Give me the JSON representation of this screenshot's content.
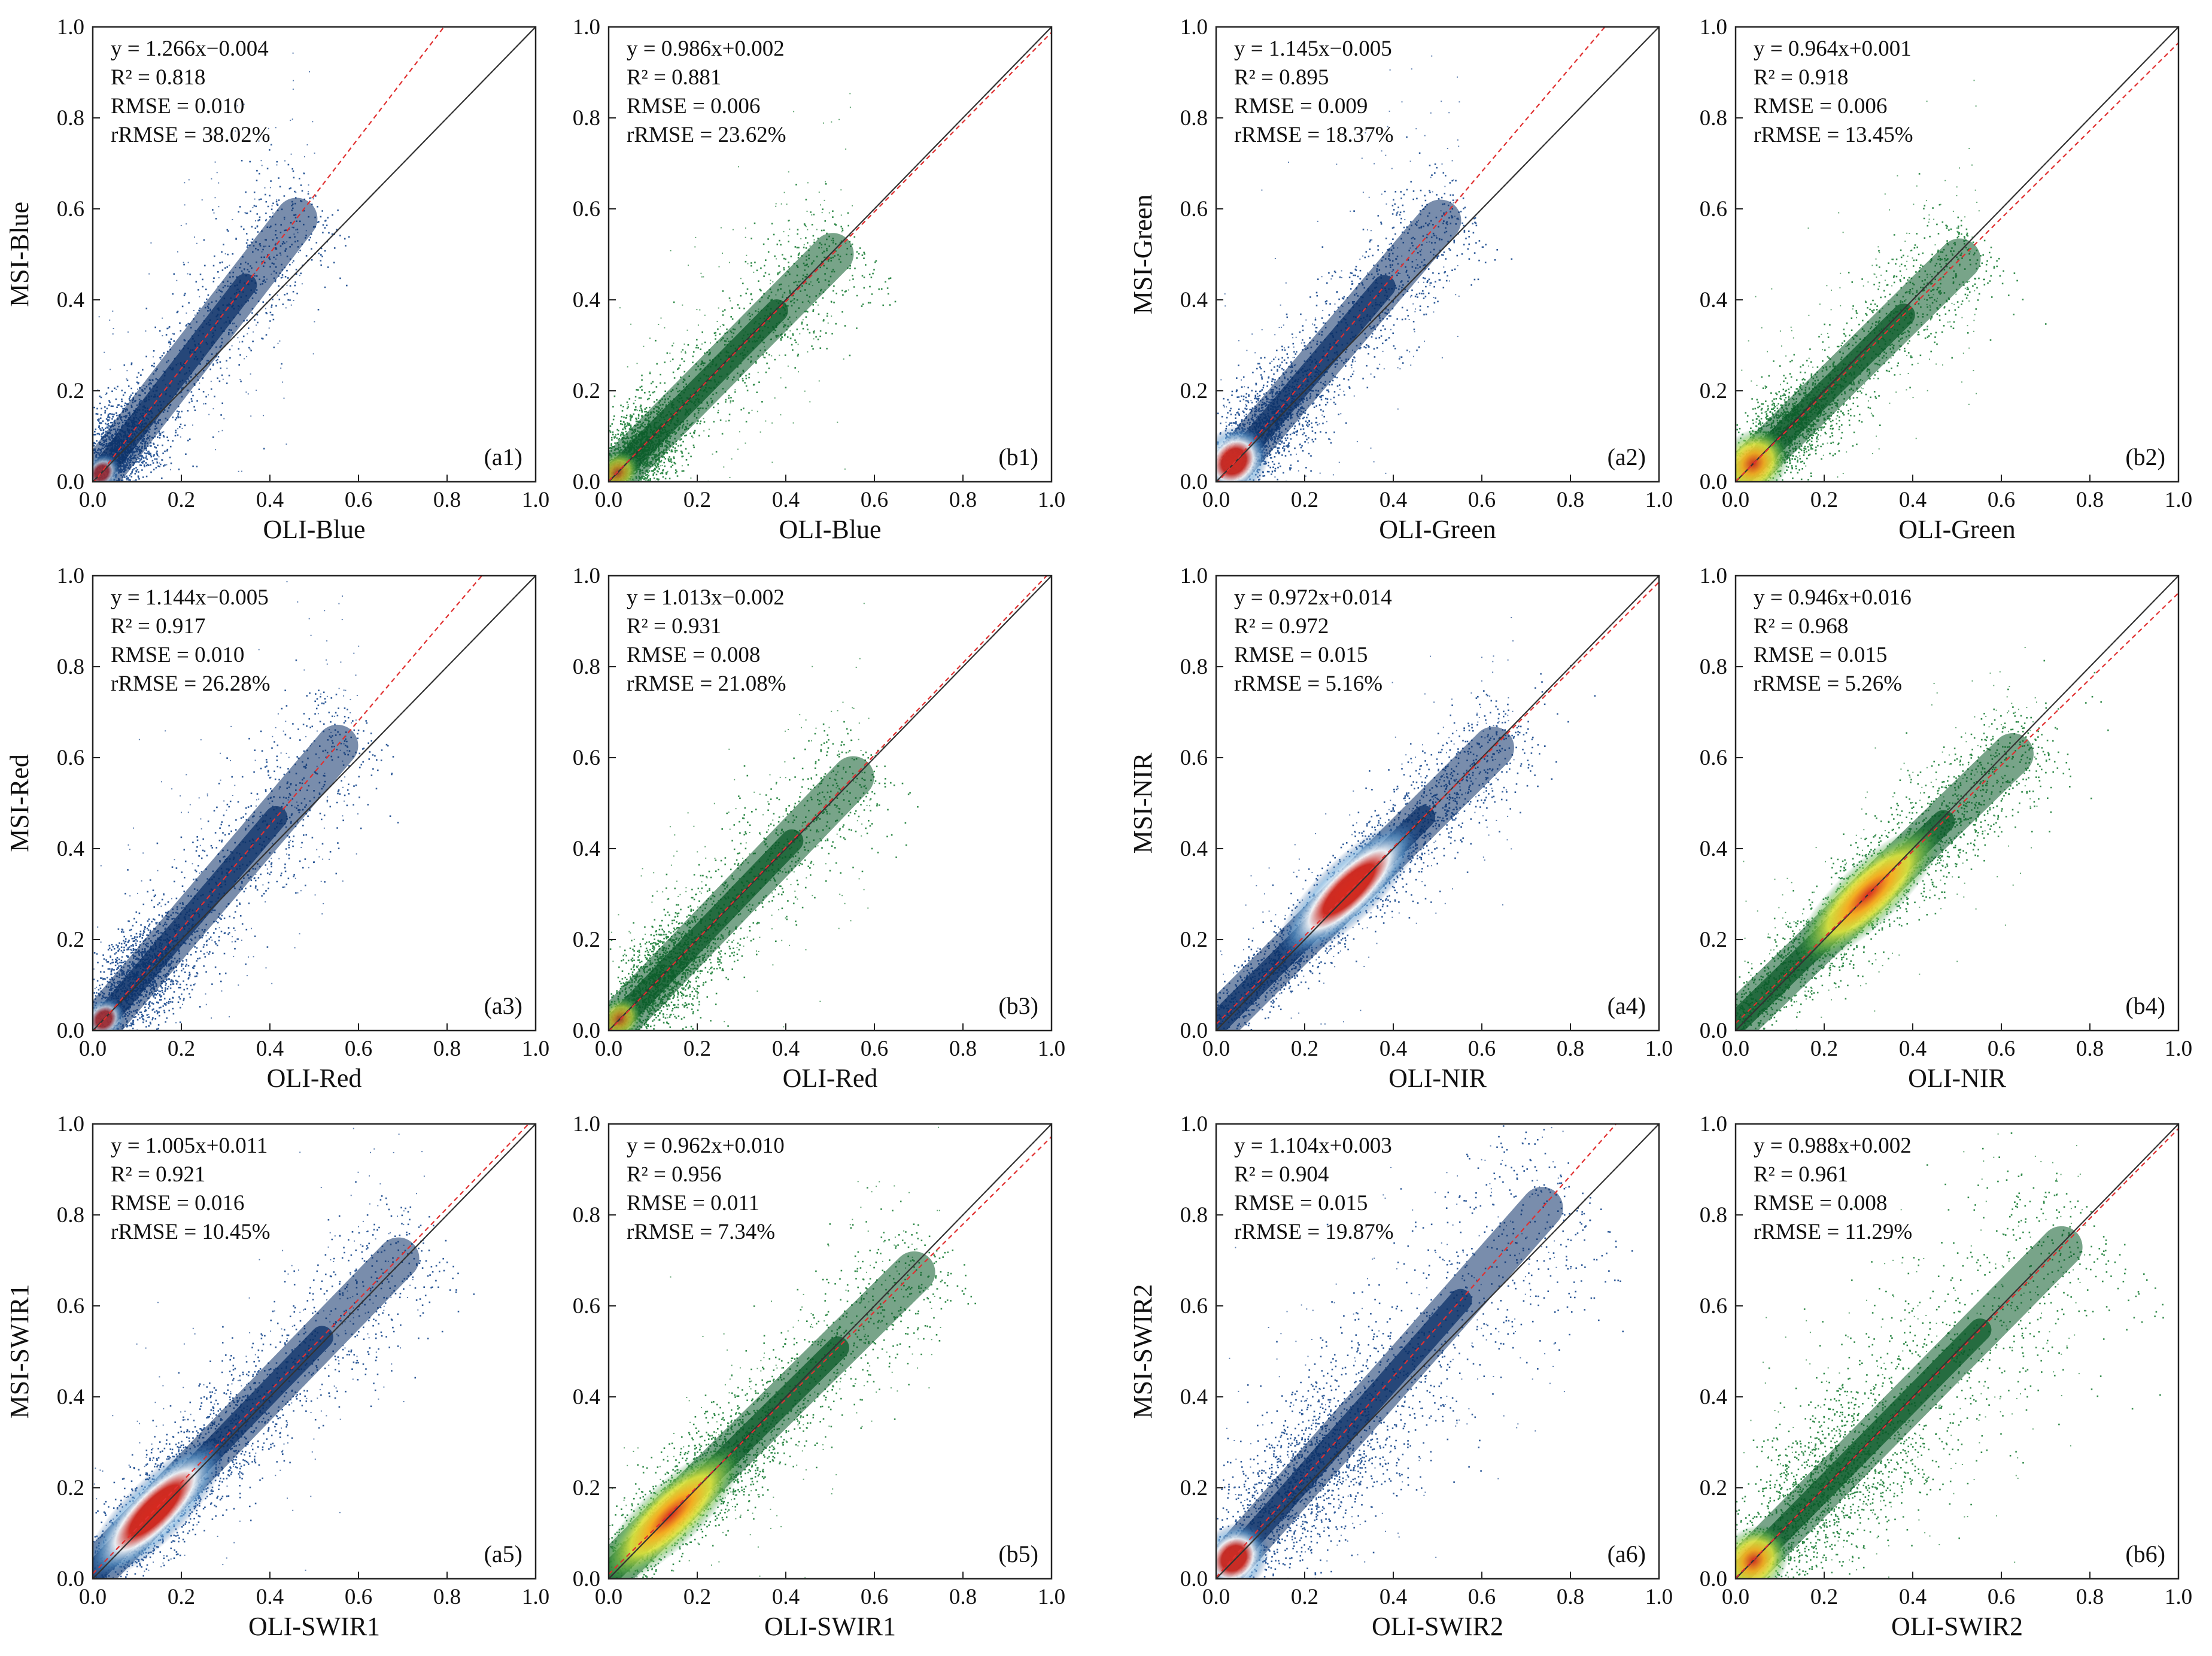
{
  "figure": {
    "background": "#ffffff"
  },
  "chart_data": [
    {
      "type": "scatter",
      "panel": "(a1)",
      "style": "blue-density",
      "xlabel": "OLI-Blue",
      "ylabel": "MSI-Blue",
      "xlim": [
        0,
        1.0
      ],
      "ylim": [
        0,
        1.0
      ],
      "xticks": [
        "0.0",
        "0.2",
        "0.4",
        "0.6",
        "0.8",
        "1.0"
      ],
      "yticks": [
        "0.0",
        "0.2",
        "0.4",
        "0.6",
        "0.8",
        "1.0"
      ],
      "fit": {
        "slope": 1.266,
        "intercept": -0.004
      },
      "stats": [
        "y = 1.266x−0.004",
        "R² = 0.818",
        "RMSE = 0.010",
        "rRMSE = 38.02%"
      ],
      "cloud": {
        "center": [
          0.06,
          0.06
        ],
        "max": [
          0.5,
          0.65
        ],
        "spread": 0.06,
        "hotspot": [
          0.02,
          0.02
        ],
        "hot_strength": 0.3
      }
    },
    {
      "type": "scatter",
      "panel": "(b1)",
      "style": "green-density",
      "xlabel": "OLI-Blue",
      "ylabel": "",
      "xlim": [
        0,
        1.0
      ],
      "ylim": [
        0,
        1.0
      ],
      "xticks": [
        "0.0",
        "0.2",
        "0.4",
        "0.6",
        "0.8",
        "1.0"
      ],
      "yticks": [
        "0.0",
        "0.2",
        "0.4",
        "0.6",
        "0.8",
        "1.0"
      ],
      "fit": {
        "slope": 0.986,
        "intercept": 0.002
      },
      "stats": [
        "y = 0.986x+0.002",
        "R² = 0.881",
        "RMSE = 0.006",
        "rRMSE = 23.62%"
      ],
      "cloud": {
        "center": [
          0.07,
          0.07
        ],
        "max": [
          0.55,
          0.5
        ],
        "spread": 0.055,
        "hotspot": [
          0.02,
          0.02
        ],
        "hot_strength": 0.4
      }
    },
    {
      "type": "scatter",
      "panel": "(a2)",
      "style": "blue-density",
      "xlabel": "OLI-Green",
      "ylabel": "MSI-Green",
      "xlim": [
        0,
        1.0
      ],
      "ylim": [
        0,
        1.0
      ],
      "xticks": [
        "0.0",
        "0.2",
        "0.4",
        "0.6",
        "0.8",
        "1.0"
      ],
      "yticks": [
        "0.0",
        "0.2",
        "0.4",
        "0.6",
        "0.8",
        "1.0"
      ],
      "fit": {
        "slope": 1.145,
        "intercept": -0.005
      },
      "stats": [
        "y = 1.145x−0.005",
        "R² = 0.895",
        "RMSE = 0.009",
        "rRMSE = 18.37%"
      ],
      "cloud": {
        "center": [
          0.1,
          0.11
        ],
        "max": [
          0.55,
          0.65
        ],
        "spread": 0.055,
        "hotspot": [
          0.04,
          0.045
        ],
        "hot_strength": 0.9
      }
    },
    {
      "type": "scatter",
      "panel": "(b2)",
      "style": "green-density",
      "xlabel": "OLI-Green",
      "ylabel": "",
      "xlim": [
        0,
        1.0
      ],
      "ylim": [
        0,
        1.0
      ],
      "xticks": [
        "0.0",
        "0.2",
        "0.4",
        "0.6",
        "0.8",
        "1.0"
      ],
      "yticks": [
        "0.0",
        "0.2",
        "0.4",
        "0.6",
        "0.8",
        "1.0"
      ],
      "fit": {
        "slope": 0.964,
        "intercept": 0.001
      },
      "stats": [
        "y = 0.964x+0.001",
        "R² = 0.918",
        "RMSE = 0.006",
        "rRMSE = 13.45%"
      ],
      "cloud": {
        "center": [
          0.11,
          0.11
        ],
        "max": [
          0.55,
          0.55
        ],
        "spread": 0.05,
        "hotspot": [
          0.04,
          0.04
        ],
        "hot_strength": 0.9
      }
    },
    {
      "type": "scatter",
      "panel": "(a3)",
      "style": "blue-density",
      "xlabel": "OLI-Red",
      "ylabel": "MSI-Red",
      "xlim": [
        0,
        1.0
      ],
      "ylim": [
        0,
        1.0
      ],
      "xticks": [
        "0.0",
        "0.2",
        "0.4",
        "0.6",
        "0.8",
        "1.0"
      ],
      "yticks": [
        "0.0",
        "0.2",
        "0.4",
        "0.6",
        "0.8",
        "1.0"
      ],
      "fit": {
        "slope": 1.144,
        "intercept": -0.005
      },
      "stats": [
        "y = 1.144x−0.005",
        "R² = 0.917",
        "RMSE = 0.010",
        "rRMSE = 26.28%"
      ],
      "cloud": {
        "center": [
          0.1,
          0.1
        ],
        "max": [
          0.6,
          0.65
        ],
        "spread": 0.06,
        "hotspot": [
          0.025,
          0.025
        ],
        "hot_strength": 0.4
      }
    },
    {
      "type": "scatter",
      "panel": "(b3)",
      "style": "green-density",
      "xlabel": "OLI-Red",
      "ylabel": "",
      "xlim": [
        0,
        1.0
      ],
      "ylim": [
        0,
        1.0
      ],
      "xticks": [
        "0.0",
        "0.2",
        "0.4",
        "0.6",
        "0.8",
        "1.0"
      ],
      "yticks": [
        "0.0",
        "0.2",
        "0.4",
        "0.6",
        "0.8",
        "1.0"
      ],
      "fit": {
        "slope": 1.013,
        "intercept": -0.002
      },
      "stats": [
        "y = 1.013x−0.002",
        "R² = 0.931",
        "RMSE = 0.008",
        "rRMSE = 21.08%"
      ],
      "cloud": {
        "center": [
          0.11,
          0.11
        ],
        "max": [
          0.6,
          0.62
        ],
        "spread": 0.055,
        "hotspot": [
          0.025,
          0.025
        ],
        "hot_strength": 0.4
      }
    },
    {
      "type": "scatter",
      "panel": "(a4)",
      "style": "blue-density",
      "xlabel": "OLI-NIR",
      "ylabel": "MSI-NIR",
      "xlim": [
        0,
        1.0
      ],
      "ylim": [
        0,
        1.0
      ],
      "xticks": [
        "0.0",
        "0.2",
        "0.4",
        "0.6",
        "0.8",
        "1.0"
      ],
      "yticks": [
        "0.0",
        "0.2",
        "0.4",
        "0.6",
        "0.8",
        "1.0"
      ],
      "fit": {
        "slope": 0.972,
        "intercept": 0.014
      },
      "stats": [
        "y = 0.972x+0.014",
        "R² = 0.972",
        "RMSE = 0.015",
        "rRMSE = 5.16%"
      ],
      "cloud": {
        "center": [
          0.3,
          0.31
        ],
        "max": [
          0.68,
          0.7
        ],
        "spread": 0.04,
        "hotspot": [
          0.3,
          0.31
        ],
        "hot_strength": 1.0
      }
    },
    {
      "type": "scatter",
      "panel": "(b4)",
      "style": "green-density",
      "xlabel": "OLI-NIR",
      "ylabel": "",
      "xlim": [
        0,
        1.0
      ],
      "ylim": [
        0,
        1.0
      ],
      "xticks": [
        "0.0",
        "0.2",
        "0.4",
        "0.6",
        "0.8",
        "1.0"
      ],
      "yticks": [
        "0.0",
        "0.2",
        "0.4",
        "0.6",
        "0.8",
        "1.0"
      ],
      "fit": {
        "slope": 0.946,
        "intercept": 0.016
      },
      "stats": [
        "y = 0.946x+0.016",
        "R² = 0.968",
        "RMSE = 0.015",
        "rRMSE = 5.26%"
      ],
      "cloud": {
        "center": [
          0.3,
          0.3
        ],
        "max": [
          0.68,
          0.67
        ],
        "spread": 0.045,
        "hotspot": [
          0.3,
          0.3
        ],
        "hot_strength": 1.0
      }
    },
    {
      "type": "scatter",
      "panel": "(a5)",
      "style": "blue-density",
      "xlabel": "OLI-SWIR1",
      "ylabel": "MSI-SWIR1",
      "xlim": [
        0,
        1.0
      ],
      "ylim": [
        0,
        1.0
      ],
      "xticks": [
        "0.0",
        "0.2",
        "0.4",
        "0.6",
        "0.8",
        "1.0"
      ],
      "yticks": [
        "0.0",
        "0.2",
        "0.4",
        "0.6",
        "0.8",
        "1.0"
      ],
      "fit": {
        "slope": 1.005,
        "intercept": 0.011
      },
      "stats": [
        "y = 1.005x+0.011",
        "R² = 0.921",
        "RMSE = 0.016",
        "rRMSE = 10.45%"
      ],
      "cloud": {
        "center": [
          0.2,
          0.21
        ],
        "max": [
          0.75,
          0.78
        ],
        "spread": 0.055,
        "hotspot": [
          0.14,
          0.15
        ],
        "hot_strength": 1.0
      }
    },
    {
      "type": "scatter",
      "panel": "(b5)",
      "style": "green-density",
      "xlabel": "OLI-SWIR1",
      "ylabel": "",
      "xlim": [
        0,
        1.0
      ],
      "ylim": [
        0,
        1.0
      ],
      "xticks": [
        "0.0",
        "0.2",
        "0.4",
        "0.6",
        "0.8",
        "1.0"
      ],
      "yticks": [
        "0.0",
        "0.2",
        "0.4",
        "0.6",
        "0.8",
        "1.0"
      ],
      "fit": {
        "slope": 0.962,
        "intercept": 0.01
      },
      "stats": [
        "y = 0.962x+0.010",
        "R² = 0.956",
        "RMSE = 0.011",
        "rRMSE = 7.34%"
      ],
      "cloud": {
        "center": [
          0.2,
          0.2
        ],
        "max": [
          0.75,
          0.75
        ],
        "spread": 0.05,
        "hotspot": [
          0.14,
          0.14
        ],
        "hot_strength": 1.0
      }
    },
    {
      "type": "scatter",
      "panel": "(a6)",
      "style": "blue-density",
      "xlabel": "OLI-SWIR2",
      "ylabel": "MSI-SWIR2",
      "xlim": [
        0,
        1.0
      ],
      "ylim": [
        0,
        1.0
      ],
      "xticks": [
        "0.0",
        "0.2",
        "0.4",
        "0.6",
        "0.8",
        "1.0"
      ],
      "yticks": [
        "0.0",
        "0.2",
        "0.4",
        "0.6",
        "0.8",
        "1.0"
      ],
      "fit": {
        "slope": 1.104,
        "intercept": 0.003
      },
      "stats": [
        "y = 1.104x+0.003",
        "R² = 0.904",
        "RMSE = 0.015",
        "rRMSE = 19.87%"
      ],
      "cloud": {
        "center": [
          0.2,
          0.2
        ],
        "max": [
          0.8,
          0.85
        ],
        "spread": 0.08,
        "hotspot": [
          0.04,
          0.045
        ],
        "hot_strength": 0.9
      }
    },
    {
      "type": "scatter",
      "panel": "(b6)",
      "style": "green-density",
      "xlabel": "OLI-SWIR2",
      "ylabel": "",
      "xlim": [
        0,
        1.0
      ],
      "ylim": [
        0,
        1.0
      ],
      "xticks": [
        "0.0",
        "0.2",
        "0.4",
        "0.6",
        "0.8",
        "1.0"
      ],
      "yticks": [
        "0.0",
        "0.2",
        "0.4",
        "0.6",
        "0.8",
        "1.0"
      ],
      "fit": {
        "slope": 0.988,
        "intercept": 0.002
      },
      "stats": [
        "y = 0.988x+0.002",
        "R² = 0.961",
        "RMSE = 0.008",
        "rRMSE = 11.29%"
      ],
      "cloud": {
        "center": [
          0.2,
          0.2
        ],
        "max": [
          0.8,
          0.8
        ],
        "spread": 0.085,
        "hotspot": [
          0.04,
          0.04
        ],
        "hot_strength": 0.9
      }
    }
  ],
  "colors": {
    "frame": "#222222",
    "one_to_one_line": "#333333",
    "fit_line": "#e03030",
    "blue_density": [
      "#0b3068",
      "#18498e",
      "#6aa7d8",
      "#ffffff",
      "#ffe24a",
      "#d62a1e"
    ],
    "green_density": [
      "#0a5a28",
      "#1d7f38",
      "#74c14f",
      "#f0f040",
      "#ffb020",
      "#d62a1e"
    ]
  }
}
